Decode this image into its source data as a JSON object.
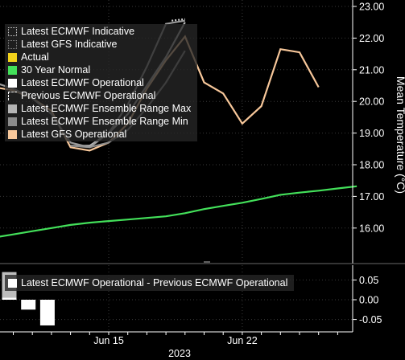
{
  "chart_data": [
    {
      "type": "line",
      "ylabel": "Mean Temperature (°C)",
      "y_axis_side": "right",
      "ylim": [
        15.0,
        23.0
      ],
      "yticks": [
        "16.00",
        "17.00",
        "18.00",
        "19.00",
        "20.00",
        "21.00",
        "22.00",
        "23.00"
      ],
      "x_day_range": [
        9,
        29
      ],
      "x_ticks": [
        {
          "day": 15,
          "label": "Jun 15"
        },
        {
          "day": 22,
          "label": "Jun 22"
        }
      ],
      "x_year_label": "2023",
      "legend_position": "top-left",
      "legend": [
        {
          "label": "Latest ECMWF Indicative",
          "style": "dotted",
          "color": "#cfcfcf"
        },
        {
          "label": "Latest GFS Indicative",
          "style": "dotted",
          "color": "#8a8a8a"
        },
        {
          "label": "Actual",
          "style": "solid",
          "color": "#f2d21b"
        },
        {
          "label": "30 Year Normal",
          "style": "solid",
          "color": "#43e05a"
        },
        {
          "label": "Latest ECMWF Operational",
          "style": "solid",
          "color": "#ffffff"
        },
        {
          "label": "Previous ECMWF Operational",
          "style": "dashed",
          "color": "#ffffff"
        },
        {
          "label": "Latest ECMWF Ensemble Range Max",
          "style": "solid",
          "color": "#b5b5b5"
        },
        {
          "label": "Latest ECMWF Ensemble Range Min",
          "style": "solid",
          "color": "#8c8c8c"
        },
        {
          "label": "Latest GFS Operational",
          "style": "solid",
          "color": "#f7c79a"
        }
      ],
      "series": [
        {
          "name": "30 Year Normal",
          "color": "#43e05a",
          "x": [
            9,
            10,
            11,
            12,
            13,
            14,
            15,
            16,
            17,
            18,
            19,
            20,
            21,
            22,
            23,
            24,
            25,
            26,
            27,
            28
          ],
          "y": [
            15.7,
            15.8,
            15.9,
            16.0,
            16.1,
            16.17,
            16.22,
            16.27,
            16.32,
            16.37,
            16.47,
            16.6,
            16.7,
            16.8,
            16.92,
            17.05,
            17.12,
            17.18,
            17.25,
            17.32
          ]
        },
        {
          "name": "Latest GFS Operational",
          "color": "#f7c79a",
          "x": [
            9,
            10,
            11,
            12,
            13,
            14,
            15,
            16,
            17,
            18,
            19,
            20,
            21,
            22,
            23,
            24,
            25,
            26,
            27,
            28
          ],
          "y": [
            20.45,
            20.35,
            20.1,
            19.7,
            18.55,
            18.45,
            18.7,
            19.3,
            20.4,
            21.3,
            22.05,
            20.6,
            20.25,
            19.3,
            19.85,
            21.65,
            21.55,
            20.45,
            null,
            null
          ]
        },
        {
          "name": "Latest ECMWF Ensemble Range Max",
          "color": "#b5b5b5",
          "x": [
            13,
            14,
            15,
            16,
            17,
            18,
            19
          ],
          "y": [
            18.6,
            18.6,
            19.0,
            19.6,
            20.5,
            21.4,
            22.5
          ]
        },
        {
          "name": "Latest ECMWF Ensemble Range Min",
          "color": "#8c8c8c",
          "x": [
            13,
            14,
            15,
            16,
            17,
            18,
            19
          ],
          "y": [
            18.6,
            18.55,
            18.7,
            19.1,
            19.8,
            20.6,
            21.6
          ]
        },
        {
          "name": "Latest ECMWF Operational",
          "color": "#9a9a9a",
          "x": [
            9,
            10,
            11,
            12,
            13,
            14,
            15,
            16,
            17,
            18,
            19
          ],
          "y": [
            20.6,
            20.4,
            20.1,
            19.6,
            18.7,
            18.55,
            19.0,
            19.9,
            21.1,
            22.45,
            22.55
          ]
        },
        {
          "name": "Latest ECMWF Indicative",
          "color": "#cfcfcf",
          "x": [
            18.3,
            19
          ],
          "y": [
            22.55,
            22.6
          ]
        }
      ]
    },
    {
      "type": "bar",
      "title": "Latest ECMWF Operational - Previous ECMWF Operational",
      "y_axis_side": "right",
      "ylim": [
        -0.07,
        0.07
      ],
      "yticks": [
        "0.05",
        "0.00",
        "-0.05"
      ],
      "x": [
        10,
        11,
        12
      ],
      "values": [
        0.005,
        -0.025,
        -0.065
      ],
      "extra_bar": {
        "day": 10,
        "value": 0.07,
        "color": "#bdbdbd"
      }
    }
  ]
}
